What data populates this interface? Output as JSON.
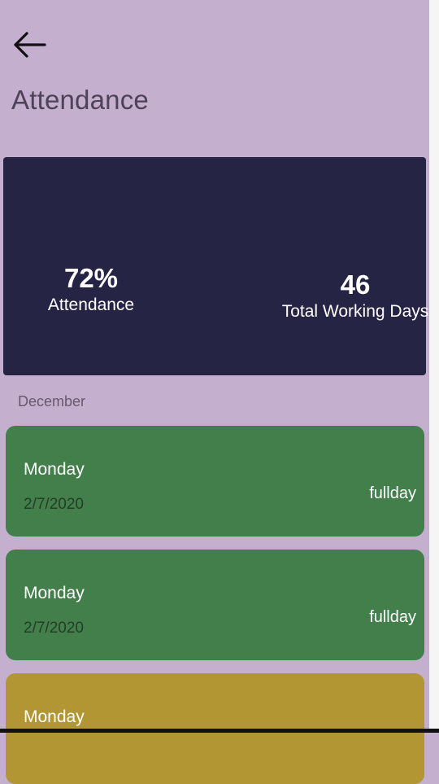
{
  "header": {
    "back_icon": "arrow-left-icon",
    "title": "Attendance"
  },
  "summary": {
    "attendance_value": "72%",
    "attendance_label": "Attendance",
    "working_days_value": "46",
    "working_days_label": "Total Working Days"
  },
  "month": "December",
  "records": [
    {
      "day": "Monday",
      "date": "2/7/2020",
      "status": "fullday",
      "color": "#437f4b"
    },
    {
      "day": "Monday",
      "date": "2/7/2020",
      "status": "fullday",
      "color": "#437f4b"
    },
    {
      "day": "Monday",
      "date": "",
      "status": "",
      "color": "#b39634"
    }
  ],
  "colors": {
    "background": "#c5afcf",
    "summary_card": "#262445",
    "fullday": "#437f4b",
    "partial": "#b39634"
  }
}
